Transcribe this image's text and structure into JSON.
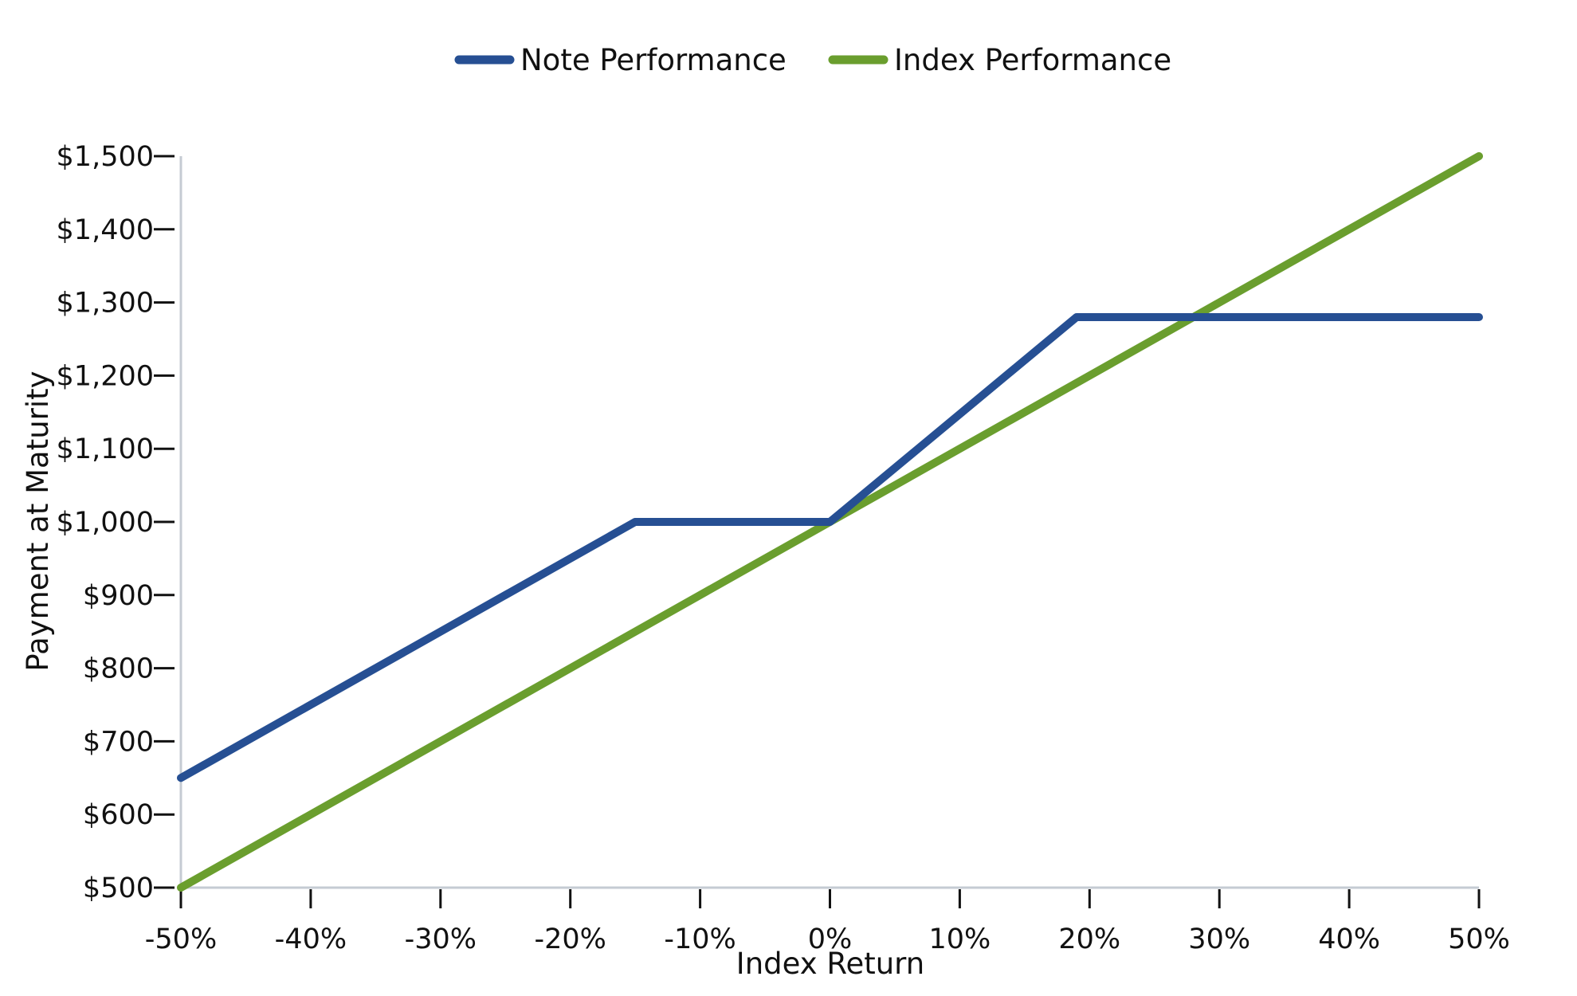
{
  "chart_data": {
    "type": "line",
    "title": "",
    "xlabel": "Index Return",
    "ylabel": "Payment at Maturity",
    "x_ticks": [
      "-50%",
      "-40%",
      "-30%",
      "-20%",
      "-10%",
      "0%",
      "10%",
      "20%",
      "30%",
      "40%",
      "50%"
    ],
    "y_ticks": [
      "$1,500",
      "$1,400",
      "$1,300",
      "$1,200",
      "$1,100",
      "$1,000",
      "$900",
      "$800",
      "$700",
      "$600",
      "$500"
    ],
    "xlim": [
      -50,
      50
    ],
    "ylim": [
      500,
      1500
    ],
    "grid": false,
    "legend_position": "top-center",
    "series": [
      {
        "name": "Note Performance",
        "color": "#264f93",
        "x": [
          -50,
          -15,
          0,
          19,
          50
        ],
        "y": [
          650,
          1000,
          1000,
          1280,
          1280
        ]
      },
      {
        "name": "Index Performance",
        "color": "#6a9e2e",
        "x": [
          -50,
          50
        ],
        "y": [
          500,
          1500
        ]
      }
    ]
  },
  "colors": {
    "axis": "#c5cbd3",
    "tick": "#111111"
  }
}
